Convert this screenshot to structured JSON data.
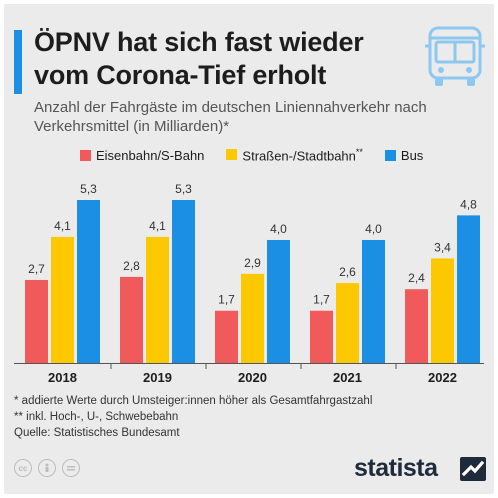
{
  "header": {
    "title": "ÖPNV hat sich fast wieder vom Corona-Tief erholt",
    "subtitle": "Anzahl der Fahrgäste im deutschen Liniennahverkehr nach Verkehrsmittel (in Milliarden)*",
    "icon": "bus-icon"
  },
  "colors": {
    "eisenbahn": "#f05a5b",
    "strassenbahn": "#fcc900",
    "bus": "#1a8fe3",
    "accent": "#1a8fe3"
  },
  "chart_data": {
    "type": "bar",
    "categories": [
      "2018",
      "2019",
      "2020",
      "2021",
      "2022"
    ],
    "series": [
      {
        "name": "Eisenbahn/S-Bahn",
        "values": [
          2.7,
          2.8,
          1.7,
          1.7,
          2.4
        ],
        "labels": [
          "2,7",
          "2,8",
          "1,7",
          "1,7",
          "2,4"
        ]
      },
      {
        "name": "Straßen-/Stadtbahn",
        "name_suffix": "**",
        "values": [
          4.1,
          4.1,
          2.9,
          2.6,
          3.4
        ],
        "labels": [
          "4,1",
          "4,1",
          "2,9",
          "2,6",
          "3,4"
        ]
      },
      {
        "name": "Bus",
        "values": [
          5.3,
          5.3,
          4.0,
          4.0,
          4.8
        ],
        "labels": [
          "5,3",
          "5,3",
          "4,0",
          "4,0",
          "4,8"
        ]
      }
    ],
    "ylim": [
      0,
      6
    ],
    "legend": "top",
    "grid": false
  },
  "footnotes": [
    "*   addierte Werte durch Umsteiger:innen höher als Gesamtfahrgastzahl",
    "** inkl. Hoch-, U-, Schwebebahn",
    "Quelle: Statistisches Bundesamt"
  ],
  "footer": {
    "brand": "statista",
    "license_icons": [
      "cc-icon",
      "by-icon",
      "nd-icon"
    ]
  }
}
